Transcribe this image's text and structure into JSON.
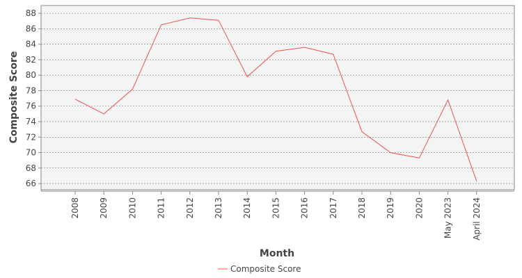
{
  "chart_data": {
    "type": "line",
    "title": "",
    "xlabel": "Month",
    "ylabel": "Composite Score",
    "categories": [
      "2008",
      "2009",
      "2010",
      "2011",
      "2012",
      "2013",
      "2014",
      "2015",
      "2016",
      "2017",
      "2018",
      "2019",
      "2020",
      "May 2023",
      "April 2024"
    ],
    "series": [
      {
        "name": "Composite Score",
        "color": "#f05050",
        "values": [
          76.9,
          75.0,
          78.2,
          86.5,
          87.4,
          87.1,
          79.8,
          83.1,
          83.6,
          82.7,
          72.7,
          70.0,
          69.3,
          76.8,
          66.3
        ]
      }
    ],
    "yticks": [
      66,
      68,
      70,
      72,
      74,
      76,
      78,
      80,
      82,
      84,
      86,
      88
    ],
    "ylim": [
      65.2,
      89.0
    ],
    "grid": true,
    "legend": "bottom-center",
    "colors": {
      "plot_background": "#f4f4f4",
      "grid": "#777777",
      "axis": "#888888"
    }
  }
}
